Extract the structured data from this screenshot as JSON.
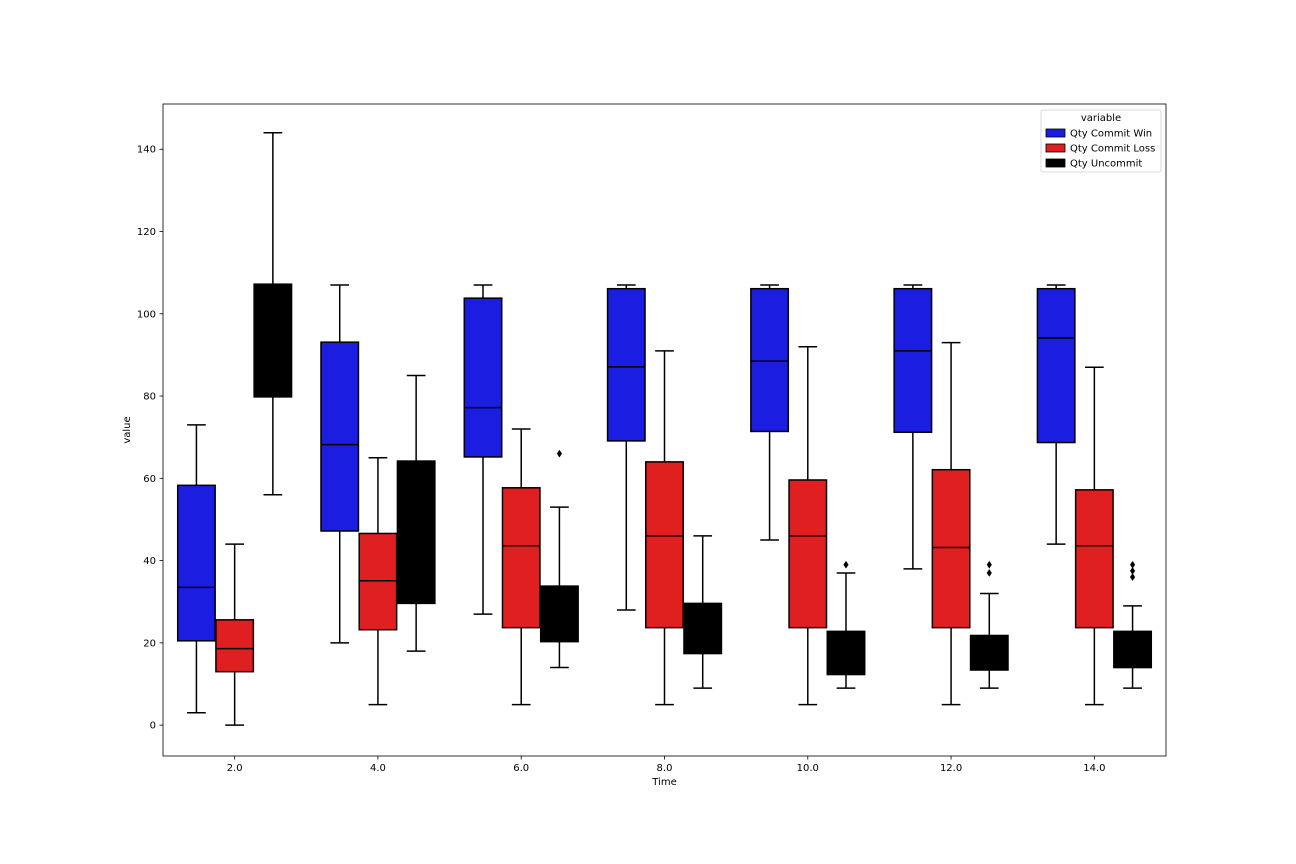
{
  "chart_data": {
    "type": "box",
    "xlabel": "Time",
    "ylabel": "value",
    "ylim": [
      -7.5,
      151
    ],
    "y_ticks": [
      0,
      20,
      40,
      60,
      80,
      100,
      120,
      140
    ],
    "categories": [
      "2.0",
      "4.0",
      "6.0",
      "8.0",
      "10.0",
      "12.0",
      "14.0"
    ],
    "legend": {
      "title": "variable",
      "placement": "top-right"
    },
    "series": [
      {
        "name": "Qty Commit Win",
        "color": "#1b1de0",
        "boxes": [
          {
            "whislo": 3,
            "q1": 20.5,
            "med": 33.5,
            "q3": 58.3,
            "whishi": 73,
            "fliers": []
          },
          {
            "whislo": 20,
            "q1": 47.2,
            "med": 68.2,
            "q3": 93.1,
            "whishi": 107,
            "fliers": []
          },
          {
            "whislo": 27,
            "q1": 65.2,
            "med": 77.2,
            "q3": 103.8,
            "whishi": 107,
            "fliers": []
          },
          {
            "whislo": 28,
            "q1": 69.1,
            "med": 87.1,
            "q3": 106.1,
            "whishi": 107,
            "fliers": []
          },
          {
            "whislo": 45,
            "q1": 71.4,
            "med": 88.5,
            "q3": 106.1,
            "whishi": 107,
            "fliers": []
          },
          {
            "whislo": 38,
            "q1": 71.2,
            "med": 91.0,
            "q3": 106.1,
            "whishi": 107,
            "fliers": []
          },
          {
            "whislo": 44,
            "q1": 68.7,
            "med": 94.1,
            "q3": 106.1,
            "whishi": 107,
            "fliers": []
          }
        ]
      },
      {
        "name": "Qty Commit Loss",
        "color": "#e02020",
        "boxes": [
          {
            "whislo": 0,
            "q1": 13.0,
            "med": 18.6,
            "q3": 25.6,
            "whishi": 44,
            "fliers": []
          },
          {
            "whislo": 5,
            "q1": 23.2,
            "med": 35.1,
            "q3": 46.6,
            "whishi": 65,
            "fliers": []
          },
          {
            "whislo": 5,
            "q1": 23.7,
            "med": 43.6,
            "q3": 57.7,
            "whishi": 72,
            "fliers": []
          },
          {
            "whislo": 5,
            "q1": 23.7,
            "med": 46.0,
            "q3": 64.0,
            "whishi": 91,
            "fliers": []
          },
          {
            "whislo": 5,
            "q1": 23.7,
            "med": 46.0,
            "q3": 59.6,
            "whishi": 92,
            "fliers": []
          },
          {
            "whislo": 5,
            "q1": 23.7,
            "med": 43.2,
            "q3": 62.1,
            "whishi": 93,
            "fliers": []
          },
          {
            "whislo": 5,
            "q1": 23.7,
            "med": 43.6,
            "q3": 57.2,
            "whishi": 87,
            "fliers": []
          }
        ]
      },
      {
        "name": "Qty Uncommit",
        "color": "#000000",
        "boxes": [
          {
            "whislo": 56,
            "q1": 79.8,
            "med": 94.0,
            "q3": 107.2,
            "whishi": 144,
            "fliers": []
          },
          {
            "whislo": 18,
            "q1": 29.6,
            "med": 44.0,
            "q3": 64.2,
            "whishi": 85,
            "fliers": []
          },
          {
            "whislo": 14,
            "q1": 20.3,
            "med": 25.0,
            "q3": 33.8,
            "whishi": 53,
            "fliers": [
              66
            ]
          },
          {
            "whislo": 9,
            "q1": 17.4,
            "med": 22.0,
            "q3": 29.6,
            "whishi": 46,
            "fliers": []
          },
          {
            "whislo": 9,
            "q1": 12.3,
            "med": 18.0,
            "q3": 22.8,
            "whishi": 37,
            "fliers": [
              39
            ]
          },
          {
            "whislo": 9,
            "q1": 13.4,
            "med": 18.0,
            "q3": 21.8,
            "whishi": 32,
            "fliers": [
              37,
              39
            ]
          },
          {
            "whislo": 9,
            "q1": 14.0,
            "med": 18.5,
            "q3": 22.8,
            "whishi": 29,
            "fliers": [
              36,
              37.5,
              39
            ]
          }
        ]
      }
    ]
  }
}
